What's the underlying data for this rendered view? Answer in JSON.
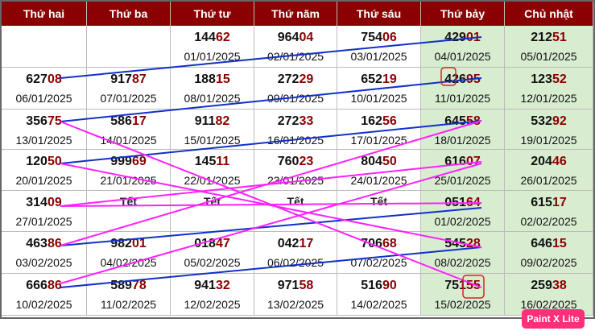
{
  "header": [
    "Thứ hai",
    "Thứ ba",
    "Thứ tư",
    "Thứ năm",
    "Thứ sáu",
    "Thứ bảy",
    "Chủ nhật"
  ],
  "rows": [
    [
      null,
      null,
      {
        "head": "144",
        "tail": "62",
        "date": "01/01/2025"
      },
      {
        "head": "964",
        "tail": "04",
        "date": "02/01/2025"
      },
      {
        "head": "754",
        "tail": "06",
        "date": "03/01/2025"
      },
      {
        "head": "429",
        "tail": "01",
        "date": "04/01/2025"
      },
      {
        "head": "212",
        "tail": "51",
        "date": "05/01/2025"
      }
    ],
    [
      {
        "head": "627",
        "tail": "08",
        "date": "06/01/2025"
      },
      {
        "head": "917",
        "tail": "87",
        "date": "07/01/2025"
      },
      {
        "head": "188",
        "tail": "15",
        "date": "08/01/2025"
      },
      {
        "head": "272",
        "tail": "29",
        "date": "09/01/2025"
      },
      {
        "head": "652",
        "tail": "19",
        "date": "10/01/2025"
      },
      {
        "head": "426",
        "tail": "95",
        "date": "11/01/2025"
      },
      {
        "head": "123",
        "tail": "52",
        "date": "12/01/2025"
      }
    ],
    [
      {
        "head": "356",
        "tail": "75",
        "date": "13/01/2025"
      },
      {
        "head": "586",
        "tail": "17",
        "date": "14/01/2025"
      },
      {
        "head": "911",
        "tail": "82",
        "date": "15/01/2025"
      },
      {
        "head": "272",
        "tail": "33",
        "date": "16/01/2025"
      },
      {
        "head": "162",
        "tail": "56",
        "date": "17/01/2025"
      },
      {
        "head": "645",
        "tail": "58",
        "date": "18/01/2025"
      },
      {
        "head": "532",
        "tail": "92",
        "date": "19/01/2025"
      }
    ],
    [
      {
        "head": "120",
        "tail": "50",
        "date": "20/01/2025"
      },
      {
        "head": "999",
        "tail": "69",
        "date": "21/01/2025"
      },
      {
        "head": "145",
        "tail": "11",
        "date": "22/01/2025"
      },
      {
        "head": "760",
        "tail": "23",
        "date": "23/01/2025"
      },
      {
        "head": "804",
        "tail": "50",
        "date": "24/01/2025"
      },
      {
        "head": "616",
        "tail": "07",
        "date": "25/01/2025"
      },
      {
        "head": "204",
        "tail": "46",
        "date": "26/01/2025"
      }
    ],
    [
      {
        "head": "314",
        "tail": "09",
        "date": "27/01/2025"
      },
      {
        "holiday": "Tết"
      },
      {
        "holiday": "Tết"
      },
      {
        "holiday": "Tết"
      },
      {
        "holiday": "Tết"
      },
      {
        "head": "051",
        "tail": "64",
        "date": "01/02/2025"
      },
      {
        "head": "615",
        "tail": "17",
        "date": "02/02/2025"
      }
    ],
    [
      {
        "head": "463",
        "tail": "86",
        "date": "03/02/2025"
      },
      {
        "head": "982",
        "tail": "01",
        "date": "04/02/2025"
      },
      {
        "head": "018",
        "tail": "47",
        "date": "05/02/2025"
      },
      {
        "head": "042",
        "tail": "17",
        "date": "06/02/2025"
      },
      {
        "head": "706",
        "tail": "68",
        "date": "07/02/2025"
      },
      {
        "head": "545",
        "tail": "28",
        "date": "08/02/2025"
      },
      {
        "head": "646",
        "tail": "15",
        "date": "09/02/2025"
      }
    ],
    [
      {
        "head": "666",
        "tail": "86",
        "date": "10/02/2025"
      },
      {
        "head": "589",
        "tail": "78",
        "date": "11/02/2025"
      },
      {
        "head": "941",
        "tail": "32",
        "date": "12/02/2025"
      },
      {
        "head": "971",
        "tail": "58",
        "date": "13/02/2025"
      },
      {
        "head": "516",
        "tail": "90",
        "date": "14/02/2025"
      },
      {
        "head": "751",
        "tail": "55",
        "date": "15/02/2025"
      },
      {
        "head": "259",
        "tail": "38",
        "date": "16/02/2025"
      }
    ]
  ],
  "watermark": "Paint X Lite"
}
